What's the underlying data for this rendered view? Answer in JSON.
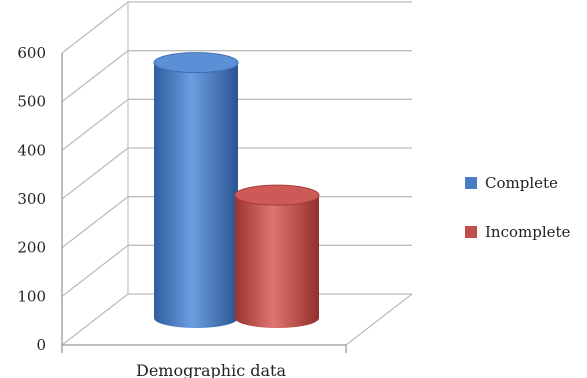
{
  "chart_data": {
    "type": "bar",
    "style": "3d-cylinder",
    "categories": [
      "Demographic data"
    ],
    "series": [
      {
        "name": "Complete",
        "values": [
          530
        ],
        "color": "#4a7cc3"
      },
      {
        "name": "Incomplete",
        "values": [
          255
        ],
        "color": "#c0504d"
      }
    ],
    "ylim": [
      0,
      600
    ],
    "yticks": [
      "0",
      "100",
      "200",
      "300",
      "400",
      "500",
      "600"
    ],
    "grid": true,
    "legend": "right"
  }
}
